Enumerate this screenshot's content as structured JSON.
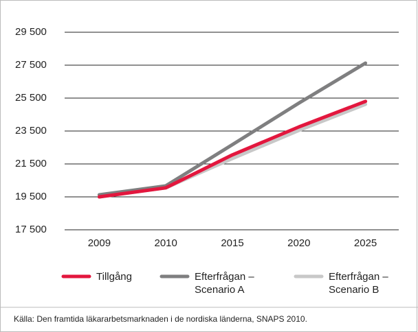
{
  "chart_data": {
    "type": "line",
    "categories": [
      "2009",
      "2010",
      "2015",
      "2020",
      "2025"
    ],
    "series": [
      {
        "name": "Tillgång",
        "color": "#e3173e",
        "values": [
          19500,
          20050,
          22050,
          23750,
          25300
        ]
      },
      {
        "name": "Efterfrågan – Scenario A",
        "color": "#7f7f80",
        "values": [
          19625,
          20170,
          22670,
          25200,
          27625
        ]
      },
      {
        "name": "Efterfrågan – Scenario B",
        "color": "#c8c8c8",
        "values": [
          19500,
          20050,
          21830,
          23540,
          25125
        ]
      }
    ],
    "ylim": [
      17500,
      29500
    ],
    "yticks": [
      {
        "value": 17500,
        "label": "17 500"
      },
      {
        "value": 19500,
        "label": "19 500"
      },
      {
        "value": 21500,
        "label": "21 500"
      },
      {
        "value": 23500,
        "label": "23 500"
      },
      {
        "value": 25500,
        "label": "25 500"
      },
      {
        "value": 27500,
        "label": "27 500"
      },
      {
        "value": 29500,
        "label": "29 500"
      }
    ],
    "grid": true,
    "legend": "bottom",
    "source": "Källa: Den framtida läkararbetsmarknaden i de nordiska länderna, SNAPS 2010."
  }
}
